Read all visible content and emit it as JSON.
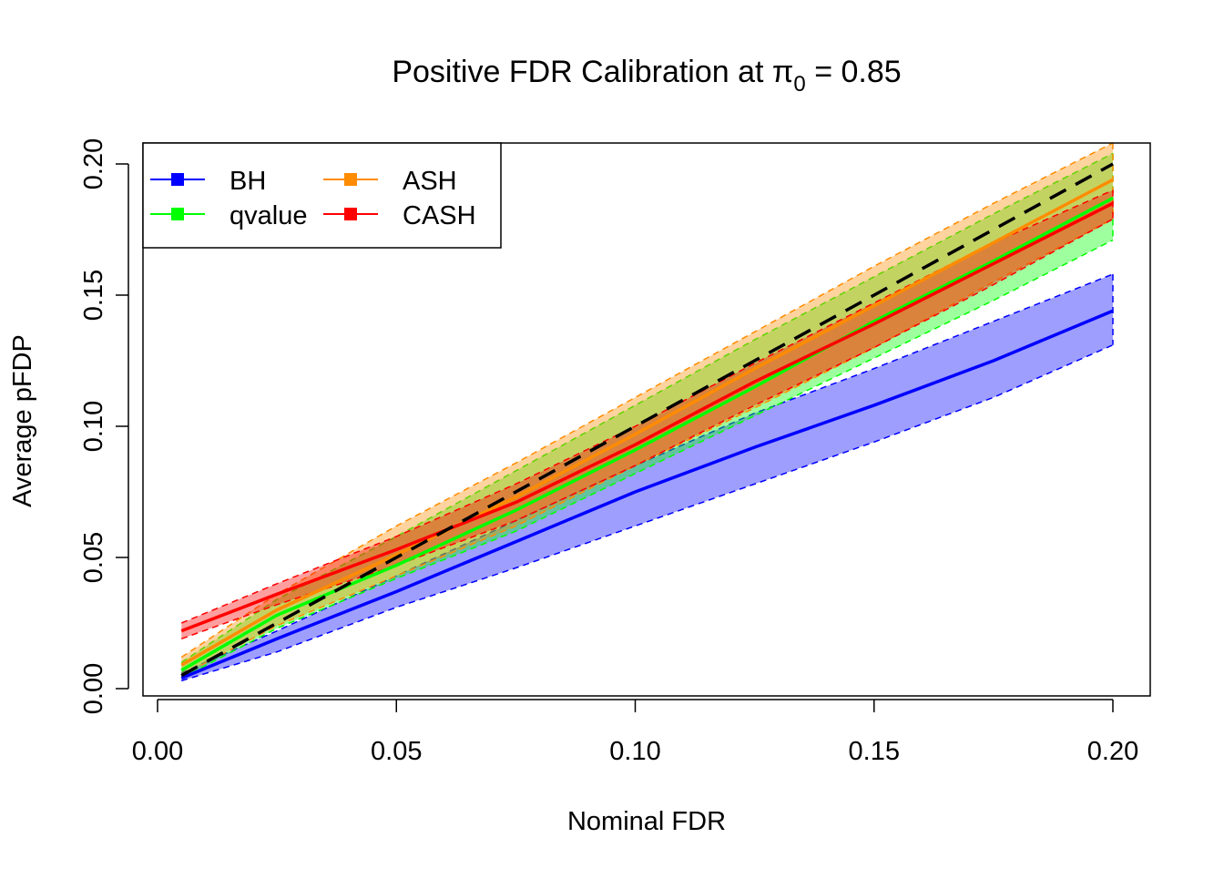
{
  "chart_data": {
    "type": "line",
    "title": "Positive FDR Calibration at π",
    "title_subscript": "0",
    "title_suffix": " = 0.85",
    "xlabel": "Nominal FDR",
    "ylabel": "Average pFDP",
    "xlim": [
      0,
      0.2
    ],
    "ylim": [
      0,
      0.2
    ],
    "xticks": [
      "0.00",
      "0.05",
      "0.10",
      "0.15",
      "0.20"
    ],
    "yticks": [
      "0.00",
      "0.05",
      "0.10",
      "0.15",
      "0.20"
    ],
    "grid": false,
    "legend_position": "top-left",
    "x": [
      0.005,
      0.025,
      0.05,
      0.075,
      0.1,
      0.125,
      0.15,
      0.175,
      0.2
    ],
    "reference_line": {
      "type": "y=x",
      "style": "dashed",
      "color": "#000000"
    },
    "series": [
      {
        "name": "BH",
        "color": "#0000FF",
        "values": [
          0.004,
          0.019,
          0.037,
          0.056,
          0.075,
          0.092,
          0.108,
          0.125,
          0.144
        ],
        "lower": [
          0.003,
          0.014,
          0.031,
          0.046,
          0.062,
          0.078,
          0.094,
          0.111,
          0.131
        ],
        "upper": [
          0.006,
          0.022,
          0.043,
          0.064,
          0.085,
          0.105,
          0.122,
          0.14,
          0.158
        ]
      },
      {
        "name": "qvalue",
        "color": "#00FF00",
        "values": [
          0.007,
          0.028,
          0.047,
          0.068,
          0.091,
          0.115,
          0.14,
          0.163,
          0.187
        ],
        "lower": [
          0.004,
          0.023,
          0.042,
          0.06,
          0.082,
          0.104,
          0.126,
          0.148,
          0.171
        ],
        "upper": [
          0.01,
          0.034,
          0.058,
          0.083,
          0.108,
          0.133,
          0.157,
          0.181,
          0.204
        ]
      },
      {
        "name": "ASH",
        "color": "#FF8C00",
        "values": [
          0.009,
          0.03,
          0.051,
          0.073,
          0.097,
          0.122,
          0.146,
          0.17,
          0.194
        ],
        "lower": [
          0.005,
          0.024,
          0.043,
          0.062,
          0.085,
          0.107,
          0.13,
          0.155,
          0.179
        ],
        "upper": [
          0.012,
          0.036,
          0.062,
          0.086,
          0.111,
          0.136,
          0.161,
          0.185,
          0.208
        ]
      },
      {
        "name": "CASH",
        "color": "#FF0000",
        "values": [
          0.022,
          0.036,
          0.053,
          0.071,
          0.093,
          0.117,
          0.139,
          0.162,
          0.185
        ],
        "lower": [
          0.019,
          0.032,
          0.047,
          0.064,
          0.085,
          0.108,
          0.13,
          0.154,
          0.179
        ],
        "upper": [
          0.025,
          0.04,
          0.058,
          0.078,
          0.1,
          0.124,
          0.147,
          0.17,
          0.19
        ]
      }
    ]
  }
}
